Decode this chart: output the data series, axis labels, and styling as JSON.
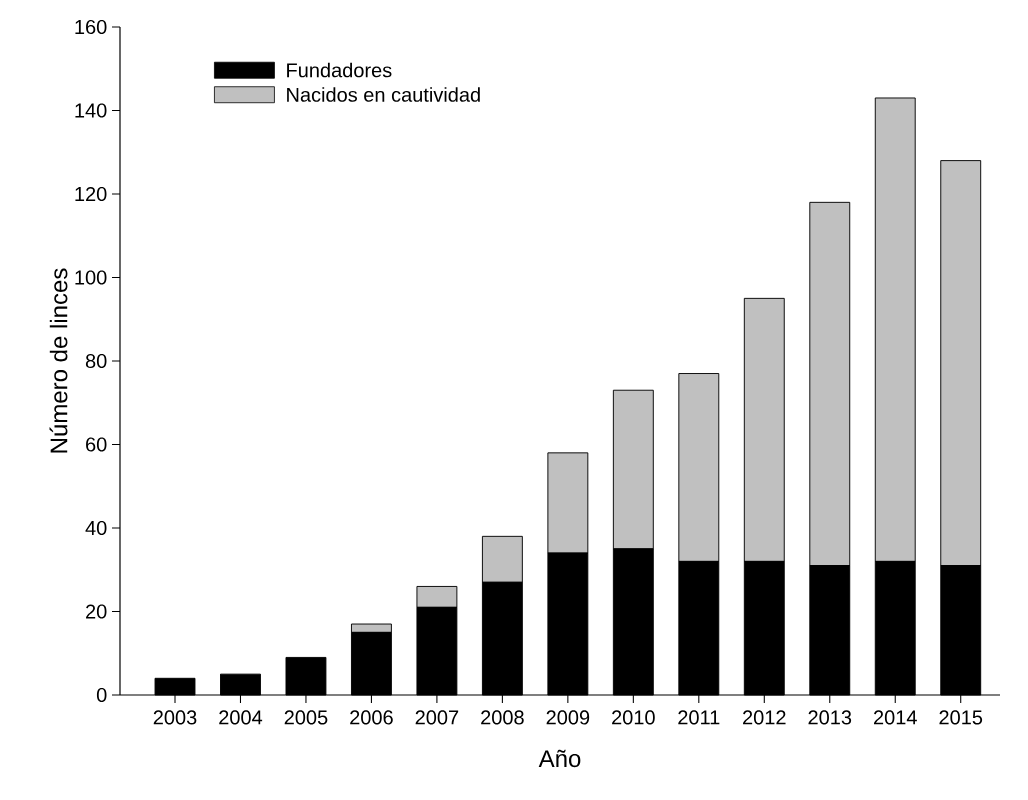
{
  "chart_data": {
    "type": "bar",
    "stacked": true,
    "xlabel": "Año",
    "ylabel": "Número de linces",
    "categories": [
      "2003",
      "2004",
      "2005",
      "2006",
      "2007",
      "2008",
      "2009",
      "2010",
      "2011",
      "2012",
      "2013",
      "2014",
      "2015"
    ],
    "series": [
      {
        "name": "Fundadores",
        "color": "#000000",
        "values": [
          4,
          5,
          9,
          15,
          21,
          27,
          34,
          35,
          32,
          32,
          31,
          32,
          31
        ]
      },
      {
        "name": "Nacidos en cautividad",
        "color": "#c0c0c0",
        "values": [
          0,
          0,
          0,
          2,
          5,
          11,
          24,
          38,
          45,
          63,
          87,
          111,
          97
        ]
      }
    ],
    "ylim": [
      0,
      160
    ],
    "yticks": [
      0,
      20,
      40,
      60,
      80,
      100,
      120,
      140,
      160
    ],
    "legend": "top left",
    "grid": false
  }
}
